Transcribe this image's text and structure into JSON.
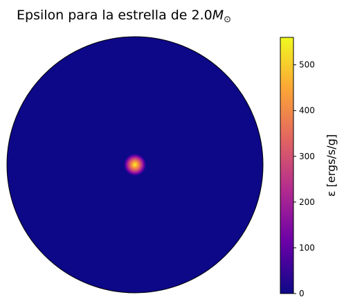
{
  "chart_data": {
    "type": "heatmap",
    "title": {
      "prefix": "Epsilon para la estrella de 2.0",
      "math_symbol": "M",
      "math_subscript": "⊙"
    },
    "plot_shape": "circle",
    "peak_location": "center",
    "colormap": "plasma",
    "colormap_colors": [
      "#0d0887",
      "#6a00a8",
      "#b12a90",
      "#e16462",
      "#fca636",
      "#f0f921"
    ],
    "background_value": 0,
    "peak_value": 560,
    "colorbar": {
      "label": "ε [ergs/s/g]",
      "range": [
        0,
        560
      ],
      "ticks": [
        0,
        100,
        200,
        300,
        400,
        500
      ],
      "tick_labels": [
        "0",
        "100",
        "200",
        "300",
        "400",
        "500"
      ]
    }
  }
}
